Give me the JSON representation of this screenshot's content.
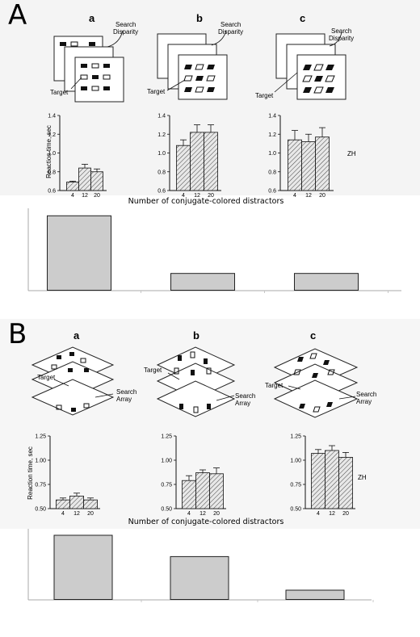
{
  "panels": [
    {
      "letter": "A",
      "x_caption": "Number of conjugate-colored distractors",
      "ylabel": "Reaction time, sec",
      "observer": "ZH",
      "stimuli": [
        {
          "letter": "a",
          "annotation_lines": [
            "Search",
            "Disparity"
          ],
          "target_label": "Target"
        },
        {
          "letter": "b",
          "annotation_lines": [
            "Search",
            "Disparity"
          ],
          "target_label": "Target"
        },
        {
          "letter": "c",
          "annotation_lines": [
            "Search",
            "Disparity"
          ],
          "target_label": "Target"
        }
      ]
    },
    {
      "letter": "B",
      "x_caption": "Number of conjugate-colored distractors",
      "ylabel": "Reaction time, sec",
      "observer": "ZH",
      "stimuli": [
        {
          "letter": "a",
          "annotation_lines": [
            "Search",
            "Array"
          ],
          "target_label": "Target"
        },
        {
          "letter": "b",
          "annotation_lines": [
            "Search",
            "Array"
          ],
          "target_label": "Target"
        },
        {
          "letter": "c",
          "annotation_lines": [
            "Search",
            "Array"
          ],
          "target_label": "Target"
        }
      ]
    }
  ],
  "chart_data": [
    {
      "id": "A-a",
      "type": "bar",
      "categories": [
        "4",
        "12",
        "20"
      ],
      "values": [
        0.69,
        0.84,
        0.8
      ],
      "errors": [
        0.01,
        0.04,
        0.03
      ],
      "ylim": [
        0.6,
        1.4
      ],
      "yticks": [
        "0.6",
        "0.8",
        "1.0",
        "1.2",
        "1.4"
      ],
      "ylabel": "Reaction time, sec"
    },
    {
      "id": "A-b",
      "type": "bar",
      "categories": [
        "4",
        "12",
        "20"
      ],
      "values": [
        1.08,
        1.22,
        1.22
      ],
      "errors": [
        0.06,
        0.08,
        0.08
      ],
      "ylim": [
        0.6,
        1.4
      ],
      "yticks": [
        "0.6",
        "0.8",
        "1.0",
        "1.2",
        "1.4"
      ]
    },
    {
      "id": "A-c",
      "type": "bar",
      "categories": [
        "4",
        "12",
        "20"
      ],
      "values": [
        1.14,
        1.12,
        1.17
      ],
      "errors": [
        0.1,
        0.08,
        0.1
      ],
      "ylim": [
        0.6,
        1.4
      ],
      "yticks": [
        "0.6",
        "0.8",
        "1.0",
        "1.2",
        "1.4"
      ]
    },
    {
      "id": "A-summary",
      "type": "bar",
      "categories": [
        "",
        "",
        ""
      ],
      "values": [
        1.0,
        0.23,
        0.23
      ],
      "ylim": [
        0,
        1.1
      ]
    },
    {
      "id": "B-a",
      "type": "bar",
      "categories": [
        "4",
        "12",
        "20"
      ],
      "values": [
        0.59,
        0.63,
        0.59
      ],
      "errors": [
        0.02,
        0.03,
        0.02
      ],
      "ylim": [
        0.5,
        1.25
      ],
      "yticks": [
        "0.50",
        "0.75",
        "1.00",
        "1.25"
      ],
      "ylabel": "Reaction time, sec"
    },
    {
      "id": "B-b",
      "type": "bar",
      "categories": [
        "4",
        "12",
        "20"
      ],
      "values": [
        0.79,
        0.87,
        0.86
      ],
      "errors": [
        0.05,
        0.03,
        0.06
      ],
      "ylim": [
        0.5,
        1.25
      ],
      "yticks": [
        "0.50",
        "0.75",
        "1.00",
        "1.25"
      ]
    },
    {
      "id": "B-c",
      "type": "bar",
      "categories": [
        "4",
        "12",
        "20"
      ],
      "values": [
        1.07,
        1.1,
        1.03
      ],
      "errors": [
        0.04,
        0.05,
        0.05
      ],
      "ylim": [
        0.5,
        1.25
      ],
      "yticks": [
        "0.50",
        "0.75",
        "1.00",
        "1.25"
      ]
    },
    {
      "id": "B-summary",
      "type": "bar",
      "categories": [
        "",
        "",
        ""
      ],
      "values": [
        1.0,
        0.67,
        0.15
      ],
      "ylim": [
        0,
        1.1
      ]
    }
  ]
}
